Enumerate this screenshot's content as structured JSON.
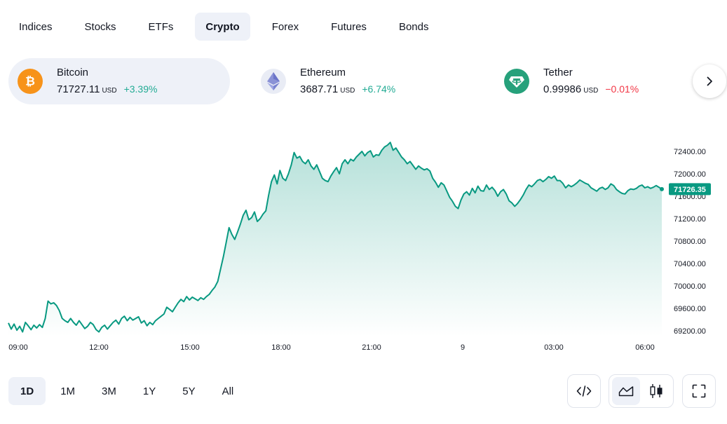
{
  "tabs": [
    {
      "label": "Indices"
    },
    {
      "label": "Stocks"
    },
    {
      "label": "ETFs"
    },
    {
      "label": "Crypto",
      "active": true
    },
    {
      "label": "Forex"
    },
    {
      "label": "Futures"
    },
    {
      "label": "Bonds"
    }
  ],
  "symbols": [
    {
      "name": "Bitcoin",
      "price": "71727.11",
      "currency": "USD",
      "change": "+3.39%",
      "direction": "up",
      "icon": "bitcoin-icon",
      "color": "#f7931a"
    },
    {
      "name": "Ethereum",
      "price": "3687.71",
      "currency": "USD",
      "change": "+6.74%",
      "direction": "up",
      "icon": "ethereum-icon",
      "color": "#627eea"
    },
    {
      "name": "Tether",
      "price": "0.99986",
      "currency": "USD",
      "change": "−0.01%",
      "direction": "down",
      "icon": "tether-icon",
      "color": "#26a17b"
    }
  ],
  "next_icon": "chevron-right-icon",
  "chart_data": {
    "type": "area",
    "series": [
      {
        "values": [
          69340,
          69230,
          69320,
          69210,
          69280,
          69180,
          69350,
          69290,
          69220,
          69300,
          69250,
          69310,
          69260,
          69420,
          69730,
          69680,
          69700,
          69650,
          69560,
          69420,
          69380,
          69350,
          69420,
          69350,
          69300,
          69380,
          69310,
          69240,
          69280,
          69350,
          69310,
          69220,
          69180,
          69260,
          69300,
          69230,
          69290,
          69350,
          69390,
          69320,
          69420,
          69460,
          69380,
          69440,
          69390,
          69420,
          69450,
          69340,
          69380,
          69290,
          69350,
          69310,
          69380,
          69420,
          69460,
          69500,
          69620,
          69580,
          69540,
          69620,
          69700,
          69760,
          69720,
          69810,
          69750,
          69800,
          69770,
          69740,
          69790,
          69760,
          69810,
          69850,
          69920,
          69980,
          70080,
          70300,
          70520,
          70780,
          71040,
          70920,
          70830,
          70960,
          71100,
          71260,
          71350,
          71180,
          71220,
          71320,
          71150,
          71200,
          71280,
          71340,
          71620,
          71860,
          71980,
          71820,
          72060,
          71920,
          71880,
          72000,
          72160,
          72380,
          72280,
          72310,
          72220,
          72180,
          72250,
          72140,
          72080,
          72160,
          72040,
          71920,
          71880,
          71860,
          71960,
          72040,
          72110,
          72000,
          72180,
          72250,
          72180,
          72260,
          72230,
          72300,
          72350,
          72400,
          72320,
          72380,
          72410,
          72300,
          72340,
          72330,
          72420,
          72480,
          72510,
          72560,
          72420,
          72460,
          72380,
          72300,
          72250,
          72180,
          72220,
          72150,
          72080,
          72140,
          72100,
          72070,
          72090,
          72050,
          71920,
          71850,
          71760,
          71840,
          71800,
          71690,
          71580,
          71510,
          71420,
          71380,
          71530,
          71640,
          71680,
          71620,
          71740,
          71660,
          71780,
          71700,
          71690,
          71800,
          71720,
          71760,
          71700,
          71600,
          71680,
          71720,
          71640,
          71520,
          71480,
          71420,
          71470,
          71540,
          71620,
          71720,
          71800,
          71770,
          71820,
          71880,
          71900,
          71860,
          71900,
          71950,
          71920,
          71960,
          71880,
          71880,
          71830,
          71750,
          71800,
          71770,
          71800,
          71840,
          71890,
          71860,
          71830,
          71810,
          71750,
          71720,
          71690,
          71740,
          71760,
          71720,
          71750,
          71820,
          71790,
          71720,
          71680,
          71650,
          71640,
          71700,
          71730,
          71720,
          71740,
          71780,
          71800,
          71750,
          71770,
          71740,
          71760,
          71790,
          71760,
          71726.35
        ]
      }
    ],
    "x_tick_labels": [
      "09:00",
      "12:00",
      "15:00",
      "18:00",
      "21:00",
      "9",
      "03:00",
      "06:00"
    ],
    "y_tick_labels": [
      "72400.00",
      "72000.00",
      "71600.00",
      "71200.00",
      "70800.00",
      "70400.00",
      "70000.00",
      "69600.00",
      "69200.00"
    ],
    "ylim": [
      69100,
      72650
    ],
    "last_value_label": "71726.35",
    "line_color": "#089981",
    "grid": false
  },
  "ranges": [
    {
      "label": "1D",
      "active": true
    },
    {
      "label": "1M"
    },
    {
      "label": "3M"
    },
    {
      "label": "1Y"
    },
    {
      "label": "5Y"
    },
    {
      "label": "All"
    }
  ],
  "tools": {
    "embed_icon": "code-icon",
    "area_icon": "area-chart-icon",
    "candles_icon": "candlestick-icon",
    "fullscreen_icon": "fullscreen-icon"
  }
}
